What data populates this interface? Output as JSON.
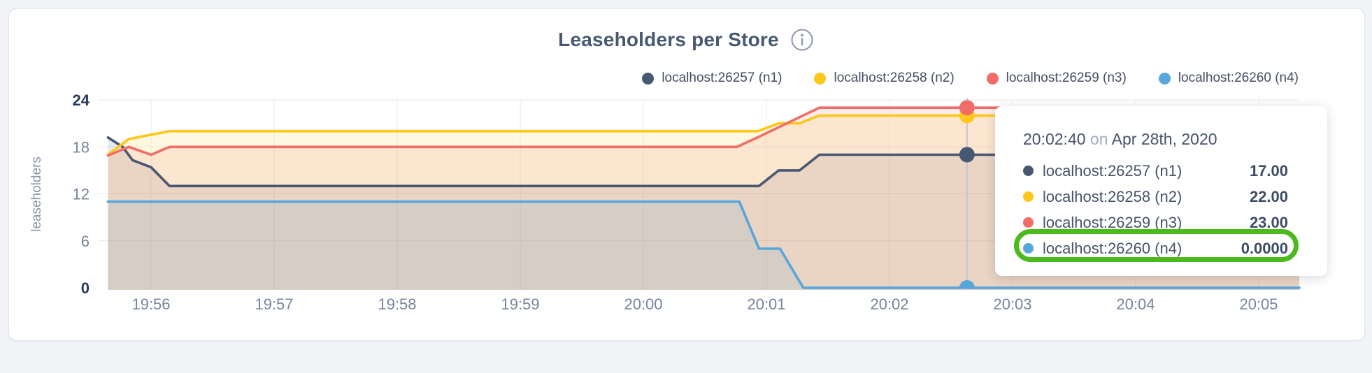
{
  "chart": {
    "title": "Leaseholders per Store",
    "info_icon": "info-circle"
  },
  "legend": {
    "items": [
      {
        "label": "localhost:26257 (n1)",
        "color": "#475872"
      },
      {
        "label": "localhost:26258 (n2)",
        "color": "#fdc81a"
      },
      {
        "label": "localhost:26259 (n3)",
        "color": "#f26d68"
      },
      {
        "label": "localhost:26260 (n4)",
        "color": "#57a7dc"
      }
    ]
  },
  "chart_data": {
    "type": "area",
    "title": "Leaseholders per Store",
    "ylabel": "leaseholders",
    "ylim": [
      0,
      24
    ],
    "y_ticks": [
      0,
      6,
      12,
      18,
      24
    ],
    "x_tick_labels": [
      "19:56",
      "19:57",
      "19:58",
      "19:59",
      "20:00",
      "20:01",
      "20:02",
      "20:03",
      "20:04",
      "20:05"
    ],
    "x_unit": "minutes after 19:56",
    "x_range": [
      -0.35,
      9.33
    ],
    "grid": true,
    "legend_position": "top-right",
    "series": [
      {
        "name": "localhost:26257 (n1)",
        "color": "#475872",
        "points": [
          [
            -0.35,
            19.2
          ],
          [
            -0.23,
            18.0
          ],
          [
            -0.15,
            16.3
          ],
          [
            0.0,
            15.4
          ],
          [
            0.15,
            13
          ],
          [
            4.94,
            13
          ],
          [
            5.1,
            15
          ],
          [
            5.27,
            15
          ],
          [
            5.43,
            17
          ],
          [
            9.33,
            17
          ]
        ]
      },
      {
        "name": "localhost:26258 (n2)",
        "color": "#fdc81a",
        "points": [
          [
            -0.35,
            17.0
          ],
          [
            -0.18,
            19.0
          ],
          [
            0.15,
            20
          ],
          [
            4.93,
            20
          ],
          [
            5.1,
            21
          ],
          [
            5.27,
            21
          ],
          [
            5.43,
            22
          ],
          [
            9.33,
            22
          ]
        ]
      },
      {
        "name": "localhost:26259 (n3)",
        "color": "#f26d68",
        "points": [
          [
            -0.35,
            16.9
          ],
          [
            -0.18,
            18
          ],
          [
            0.0,
            17
          ],
          [
            0.15,
            18
          ],
          [
            4.76,
            18
          ],
          [
            4.94,
            19.3
          ],
          [
            5.43,
            23
          ],
          [
            9.33,
            23
          ]
        ]
      },
      {
        "name": "localhost:26260 (n4)",
        "color": "#57a7dc",
        "points": [
          [
            -0.35,
            11
          ],
          [
            4.78,
            11
          ],
          [
            4.94,
            5
          ],
          [
            5.11,
            5
          ],
          [
            5.3,
            0
          ],
          [
            9.33,
            0
          ]
        ]
      }
    ],
    "hover": {
      "x": 6.63,
      "time": "20:02:40",
      "values": [
        17,
        22,
        23,
        0
      ]
    }
  },
  "tooltip": {
    "time": "20:02:40",
    "connector": "on",
    "date": "Apr 28th, 2020",
    "rows": [
      {
        "name": "localhost:26257 (n1)",
        "value": "17.00",
        "color": "#475872",
        "highlighted": false
      },
      {
        "name": "localhost:26258 (n2)",
        "value": "22.00",
        "color": "#fdc81a",
        "highlighted": false
      },
      {
        "name": "localhost:26259 (n3)",
        "value": "23.00",
        "color": "#f26d68",
        "highlighted": false
      },
      {
        "name": "localhost:26260 (n4)",
        "value": "0.0000",
        "color": "#57a7dc",
        "highlighted": true
      }
    ],
    "highlight_color": "#4cb91d"
  }
}
